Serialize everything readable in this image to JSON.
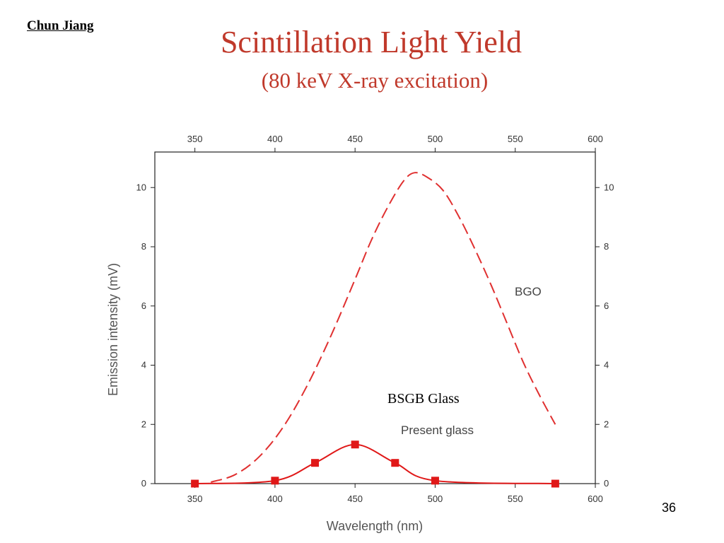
{
  "header": {
    "author": "Chun Jiang",
    "title": "Scintillation Light Yield",
    "subtitle": "(80 keV X-ray excitation)"
  },
  "footer": {
    "page_number": "36"
  },
  "chart_data": {
    "type": "line",
    "xlabel": "Wavelength (nm)",
    "ylabel": "Emission intensity (mV)",
    "xlim": [
      325,
      600
    ],
    "ylim": [
      0,
      11.2
    ],
    "x_ticks": [
      350,
      400,
      450,
      500,
      550,
      600
    ],
    "y_ticks": [
      0,
      2,
      4,
      6,
      8,
      10
    ],
    "grid": false,
    "annotations": {
      "bgo": "BGO",
      "bsgb": "BSGB Glass",
      "present": "Present glass"
    },
    "series": [
      {
        "style": "dashed",
        "color": "#e03030",
        "x": [
          360,
          375,
          390,
          405,
          420,
          435,
          450,
          460,
          470,
          480,
          487,
          495,
          505,
          515,
          525,
          535,
          545,
          555,
          565,
          575
        ],
        "y": [
          0.05,
          0.3,
          0.9,
          1.9,
          3.3,
          5.0,
          6.9,
          8.2,
          9.3,
          10.2,
          10.5,
          10.35,
          9.9,
          9.0,
          7.9,
          6.7,
          5.4,
          4.1,
          3.0,
          2.0
        ]
      },
      {
        "style": "solid",
        "color": "#e01818",
        "marker": "square",
        "x": [
          350,
          400,
          425,
          450,
          475,
          500,
          575
        ],
        "y": [
          0.0,
          0.1,
          0.7,
          1.32,
          0.7,
          0.1,
          0.0
        ]
      }
    ]
  }
}
